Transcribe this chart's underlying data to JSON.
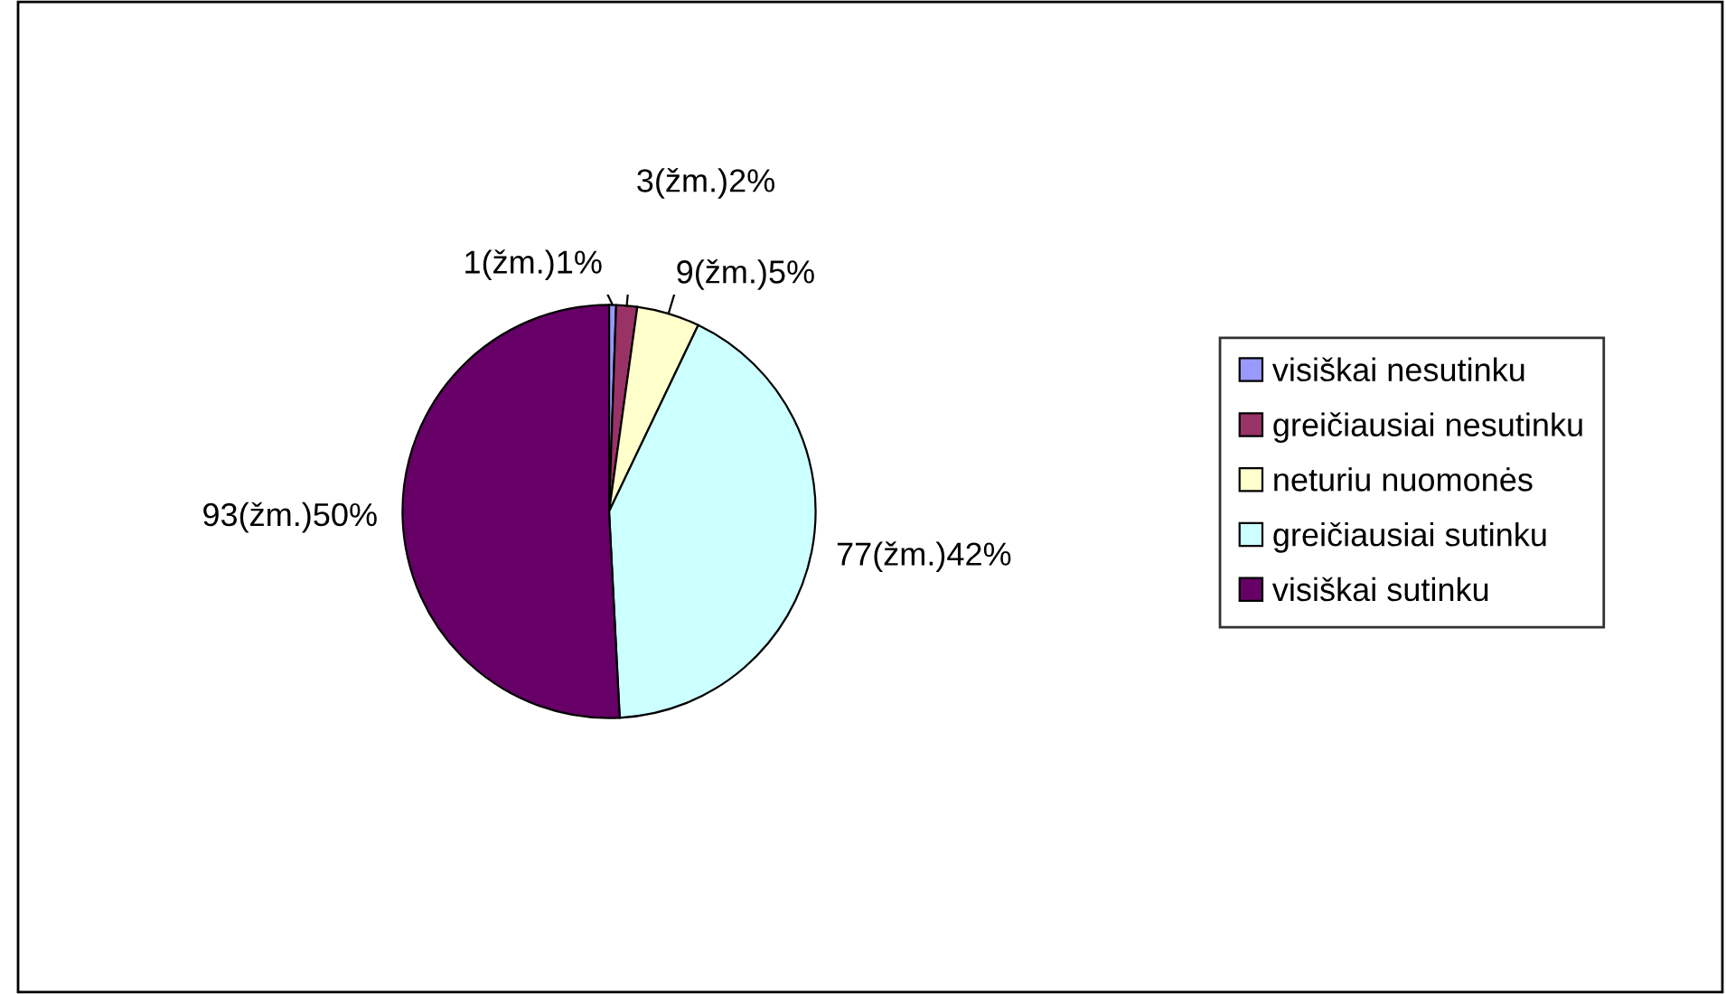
{
  "chart_data": {
    "type": "pie",
    "categories": [
      "visiškai nesutinku",
      "greičiausiai nesutinku",
      "neturiu nuomonės",
      "greičiausiai sutinku",
      "visiškai sutinku"
    ],
    "values": [
      1,
      3,
      9,
      77,
      93
    ],
    "value_labels": [
      "1(žm.)1%",
      "3(žm.)2%",
      "9(žm.)5%",
      "77(žm.)42%",
      "93(žm.)50%"
    ],
    "colors": [
      "#9999ff",
      "#993366",
      "#ffffcc",
      "#ccffff",
      "#660066"
    ],
    "legend": "right"
  }
}
